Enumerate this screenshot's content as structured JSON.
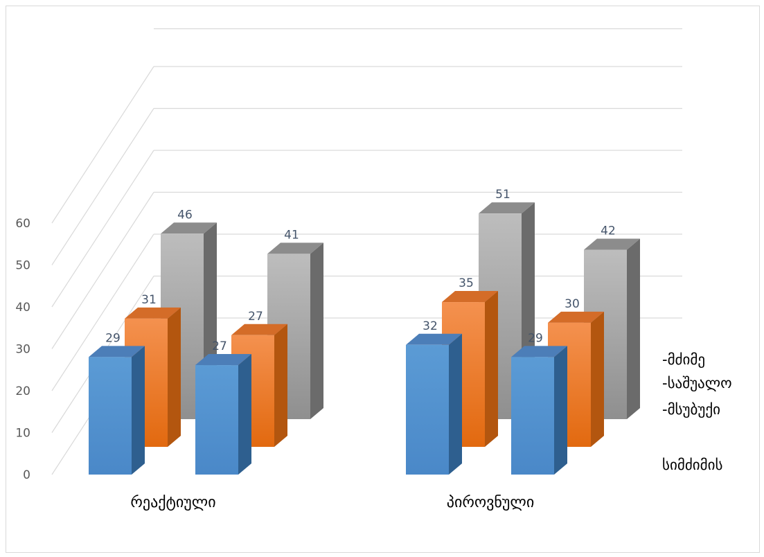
{
  "chart_data": {
    "type": "bar",
    "categories": [
      "რეაქტიული",
      "პიროვნული"
    ],
    "groups": [
      {
        "bars": [
          {
            "series": 0,
            "value": 29
          },
          {
            "series": 1,
            "value": 31
          },
          {
            "series": 2,
            "value": 46
          }
        ]
      },
      {
        "bars": [
          {
            "series": 0,
            "value": 27
          },
          {
            "series": 1,
            "value": 27
          },
          {
            "series": 2,
            "value": 41
          }
        ]
      },
      {
        "bars": [
          {
            "series": 0,
            "value": 32
          },
          {
            "series": 1,
            "value": 35
          },
          {
            "series": 2,
            "value": 51
          }
        ]
      },
      {
        "bars": [
          {
            "series": 0,
            "value": 29
          },
          {
            "series": 1,
            "value": 30
          },
          {
            "series": 2,
            "value": 42
          }
        ]
      }
    ],
    "y_ticks": [
      "0",
      "10",
      "20",
      "30",
      "40",
      "50",
      "60"
    ],
    "ylim": [
      0,
      60
    ],
    "legend": {
      "title": "სიმძიმის",
      "entries": [
        "-მძიმე",
        "-საშუალო",
        "-მსუბუქი"
      ],
      "placement": "right"
    },
    "grid": true,
    "colors": {
      "blue": "#5b9bd5",
      "orange": "#ed7d31",
      "gray": "#a5a5a5",
      "grid": "#d9d9d9"
    }
  }
}
